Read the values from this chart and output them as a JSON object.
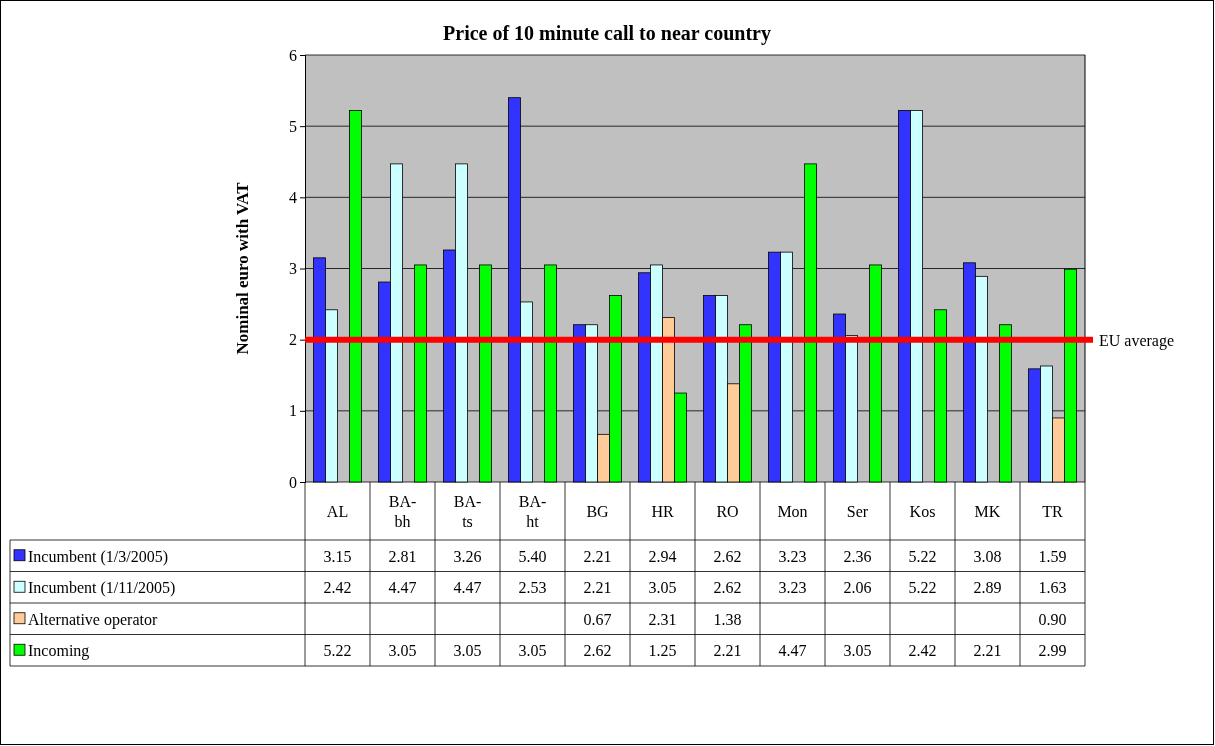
{
  "chart_data": {
    "type": "bar",
    "title": "Price of 10 minute call to near country",
    "ylabel": "Nominal euro with VAT",
    "categories": [
      "AL",
      "BA-bh",
      "BA-ts",
      "BA-ht",
      "BG",
      "HR",
      "RO",
      "Mon",
      "Ser",
      "Kos",
      "MK",
      "TR"
    ],
    "series": [
      {
        "name": "Incumbent (1/3/2005)",
        "color": "#3333ff",
        "values": [
          3.15,
          2.81,
          3.26,
          5.4,
          2.21,
          2.94,
          2.62,
          3.23,
          2.36,
          5.22,
          3.08,
          1.59
        ],
        "value_labels": [
          "3.15",
          "2.81",
          "3.26",
          "5.40",
          "2.21",
          "2.94",
          "2.62",
          "3.23",
          "2.36",
          "5.22",
          "3.08",
          "1.59"
        ]
      },
      {
        "name": "Incumbent (1/11/2005)",
        "color": "#ccffff",
        "values": [
          2.42,
          4.47,
          4.47,
          2.53,
          2.21,
          3.05,
          2.62,
          3.23,
          2.06,
          5.22,
          2.89,
          1.63
        ],
        "value_labels": [
          "2.42",
          "4.47",
          "4.47",
          "2.53",
          "2.21",
          "3.05",
          "2.62",
          "3.23",
          "2.06",
          "5.22",
          "2.89",
          "1.63"
        ]
      },
      {
        "name": "Alternative operator",
        "color": "#ffcc99",
        "values": [
          null,
          null,
          null,
          null,
          0.67,
          2.31,
          1.38,
          null,
          null,
          null,
          null,
          0.9
        ],
        "value_labels": [
          null,
          null,
          null,
          null,
          "0.67",
          "2.31",
          "1.38",
          null,
          null,
          null,
          null,
          "0.90"
        ]
      },
      {
        "name": "Incoming",
        "color": "#00ff00",
        "values": [
          5.22,
          3.05,
          3.05,
          3.05,
          2.62,
          1.25,
          2.21,
          4.47,
          3.05,
          2.42,
          2.21,
          2.99
        ],
        "value_labels": [
          "5.22",
          "3.05",
          "3.05",
          "3.05",
          "2.62",
          "1.25",
          "2.21",
          "4.47",
          "3.05",
          "2.42",
          "2.21",
          "2.99"
        ]
      }
    ],
    "ylim": [
      0,
      6
    ],
    "yticks": [
      0,
      1,
      2,
      3,
      4,
      5,
      6
    ],
    "grid": "y",
    "legend": "bottom",
    "ref_lines": [
      {
        "axis": "y",
        "value": 2,
        "label": "EU average",
        "color": "#ff0000"
      }
    ]
  }
}
